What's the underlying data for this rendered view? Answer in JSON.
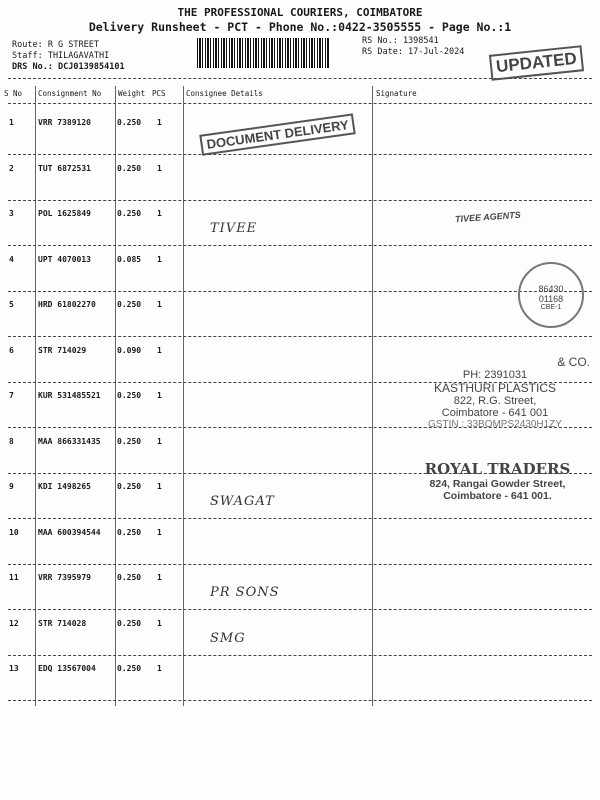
{
  "header": {
    "title": "THE PROFESSIONAL COURIERS, COIMBATORE",
    "subtitle": "Delivery Runsheet - PCT - Phone No.:0422-3505555 - Page No.:1",
    "route": "Route: R G STREET",
    "staff": "Staff: THILAGAVATHI",
    "drs": "DRS No.: DCJ0139854101",
    "rs_no": "RS No.: 1398541",
    "rs_date": "RS Date: 17-Jul-2024"
  },
  "columns": [
    "S No",
    "Consignment No",
    "Weight",
    "PCS",
    "Consignee Details",
    "Signature"
  ],
  "rows": [
    {
      "sno": "1",
      "cn": "VRR 7389120",
      "wt": "0.250",
      "pcs": "1",
      "consignee": ""
    },
    {
      "sno": "2",
      "cn": "TUT 6872531",
      "wt": "0.250",
      "pcs": "1",
      "consignee": ""
    },
    {
      "sno": "3",
      "cn": "POL 1625849",
      "wt": "0.250",
      "pcs": "1",
      "consignee": "TIVEE"
    },
    {
      "sno": "4",
      "cn": "UPT 4070013",
      "wt": "0.085",
      "pcs": "1",
      "consignee": ""
    },
    {
      "sno": "5",
      "cn": "HRD 61802270",
      "wt": "0.250",
      "pcs": "1",
      "consignee": ""
    },
    {
      "sno": "6",
      "cn": "STR 714029",
      "wt": "0.090",
      "pcs": "1",
      "consignee": ""
    },
    {
      "sno": "7",
      "cn": "KUR 531485521",
      "wt": "0.250",
      "pcs": "1",
      "consignee": ""
    },
    {
      "sno": "8",
      "cn": "MAA 866331435",
      "wt": "0.250",
      "pcs": "1",
      "consignee": ""
    },
    {
      "sno": "9",
      "cn": "KDI 1498265",
      "wt": "0.250",
      "pcs": "1",
      "consignee": "SWAGAT"
    },
    {
      "sno": "10",
      "cn": "MAA 600394544",
      "wt": "0.250",
      "pcs": "1",
      "consignee": ""
    },
    {
      "sno": "11",
      "cn": "VRR 7395979",
      "wt": "0.250",
      "pcs": "1",
      "consignee": "PR SONS"
    },
    {
      "sno": "12",
      "cn": "STR 714028",
      "wt": "0.250",
      "pcs": "1",
      "consignee": "SMG"
    },
    {
      "sno": "13",
      "cn": "EDQ 13567004",
      "wt": "0.250",
      "pcs": "1",
      "consignee": ""
    }
  ],
  "stamps": {
    "document_delivery": "DOCUMENT DELIVERY",
    "updated": "UPDATED",
    "tivee": "TIVEE AGENTS",
    "kasthuri": [
      "& CO.",
      "PH: 2391031",
      "KASTHURI PLASTICS",
      "822, R.G. Street,",
      "Coimbatore - 641 001",
      "GSTIN : 33BOMPS2430H1ZY"
    ],
    "royal": [
      "ROYAL TRADERS",
      "824, Rangai Gowder Street,",
      "Coimbatore - 641 001."
    ],
    "round_seal": [
      "86430",
      "01168",
      "CBE-1"
    ]
  }
}
